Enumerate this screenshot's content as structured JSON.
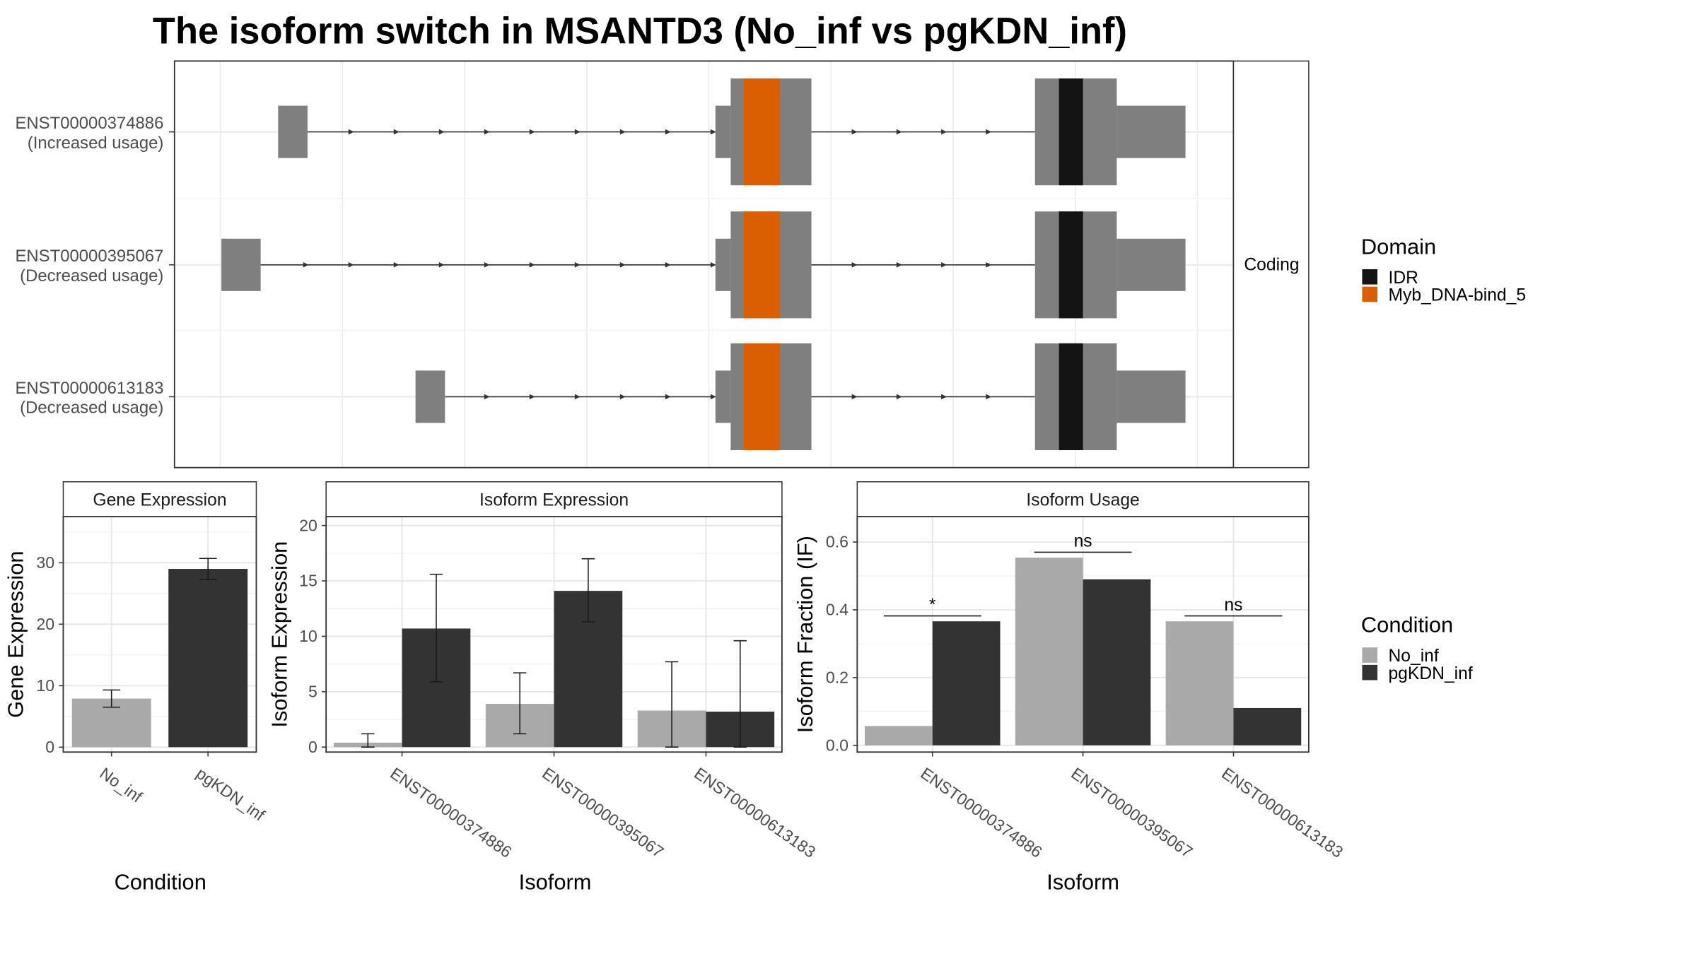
{
  "title": "The isoform switch in MSANTD3 (No_inf vs pgKDN_inf)",
  "colors": {
    "exon": "#7f7f7f",
    "IDR": "#141414",
    "Myb_DNA-bind_5": "#d95f02",
    "No_inf": "#a9a9a9",
    "pgKDN_inf": "#333333"
  },
  "structure": {
    "strip_label": "Coding",
    "isoforms": [
      {
        "id": "ENST00000374886",
        "usage": "(Increased usage)"
      },
      {
        "id": "ENST00000395067",
        "usage": "(Decreased usage)"
      },
      {
        "id": "ENST00000613183",
        "usage": "(Decreased usage)"
      }
    ]
  },
  "legend_domain": {
    "title": "Domain",
    "items": [
      {
        "label": "IDR",
        "color": "#141414"
      },
      {
        "label": "Myb_DNA-bind_5",
        "color": "#d95f02"
      }
    ]
  },
  "legend_condition": {
    "title": "Condition",
    "items": [
      {
        "label": "No_inf",
        "color": "#a9a9a9"
      },
      {
        "label": "pgKDN_inf",
        "color": "#333333"
      }
    ]
  },
  "chart_data": [
    {
      "type": "bar",
      "title": "Gene Expression",
      "xlabel": "Condition",
      "ylabel": "Gene Expression",
      "categories": [
        "No_inf",
        "pgKDN_inf"
      ],
      "values": [
        7.9,
        29.0
      ],
      "errors": [
        [
          6.5,
          9.3
        ],
        [
          27.3,
          30.7
        ]
      ],
      "yticks": [
        "0",
        "10",
        "20",
        "30"
      ],
      "ylim": [
        0,
        37.5
      ]
    },
    {
      "type": "bar",
      "title": "Isoform Expression",
      "xlabel": "Isoform",
      "ylabel": "Isoform Expression",
      "categories": [
        "ENST00000374886",
        "ENST00000395067",
        "ENST00000613183"
      ],
      "series": [
        {
          "name": "No_inf",
          "values": [
            0.4,
            3.9,
            3.3
          ],
          "errors": [
            [
              0.0,
              1.2
            ],
            [
              1.2,
              6.7
            ],
            [
              0.0,
              7.7
            ]
          ]
        },
        {
          "name": "pgKDN_inf",
          "values": [
            10.7,
            14.1,
            3.2
          ],
          "errors": [
            [
              5.9,
              15.6
            ],
            [
              11.3,
              17.0
            ],
            [
              0.0,
              9.6
            ]
          ]
        }
      ],
      "yticks": [
        "0",
        "5",
        "10",
        "15",
        "20"
      ],
      "ylim": [
        0,
        20.8
      ]
    },
    {
      "type": "bar",
      "title": "Isoform Usage",
      "xlabel": "Isoform",
      "ylabel": "Isoform Fraction (IF)",
      "categories": [
        "ENST00000374886",
        "ENST00000395067",
        "ENST00000613183"
      ],
      "series": [
        {
          "name": "No_inf",
          "values": [
            0.057,
            0.554,
            0.366
          ]
        },
        {
          "name": "pgKDN_inf",
          "values": [
            0.366,
            0.49,
            0.11
          ]
        }
      ],
      "significance": [
        "*",
        "ns",
        "ns"
      ],
      "yticks": [
        "0.0",
        "0.2",
        "0.4",
        "0.6"
      ],
      "ylim": [
        0,
        0.675
      ]
    }
  ]
}
